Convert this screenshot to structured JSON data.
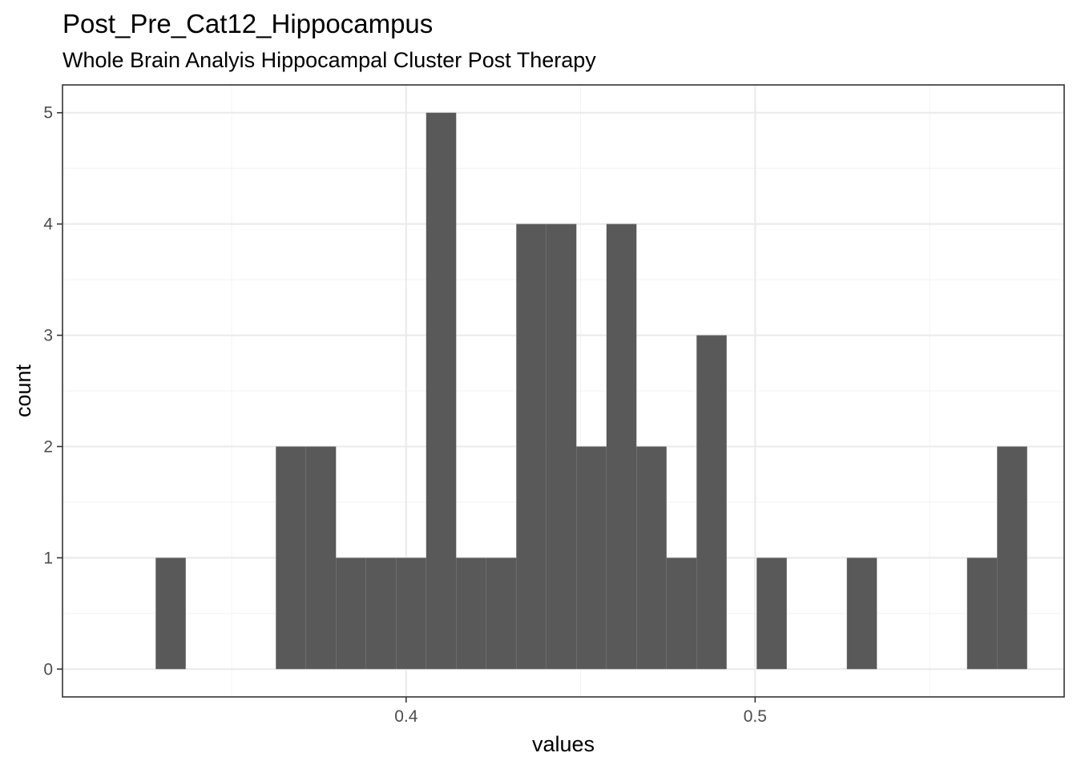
{
  "chart_data": {
    "type": "bar",
    "title": "Post_Pre_Cat12_Hippocampus",
    "subtitle": "Whole Brain Analyis Hippocampal Cluster Post Therapy",
    "xlabel": "values",
    "ylabel": "count",
    "x_ticks": [
      0.4,
      0.5
    ],
    "x_tick_labels": [
      "0.4",
      "0.5"
    ],
    "y_ticks": [
      0,
      1,
      2,
      3,
      4,
      5
    ],
    "y_tick_labels": [
      "0",
      "1",
      "2",
      "3",
      "4",
      "5"
    ],
    "xlim": [
      0.30155,
      0.58855
    ],
    "ylim": [
      -0.25,
      5.25
    ],
    "bin_width": 0.00861,
    "bins": [
      {
        "x_min": 0.32825,
        "x_max": 0.33686,
        "count": 1
      },
      {
        "x_min": 0.33686,
        "x_max": 0.34547,
        "count": 0
      },
      {
        "x_min": 0.34547,
        "x_max": 0.35408,
        "count": 0
      },
      {
        "x_min": 0.35408,
        "x_max": 0.36269,
        "count": 0
      },
      {
        "x_min": 0.36269,
        "x_max": 0.3713,
        "count": 2
      },
      {
        "x_min": 0.3713,
        "x_max": 0.37991,
        "count": 2
      },
      {
        "x_min": 0.37991,
        "x_max": 0.38852,
        "count": 1
      },
      {
        "x_min": 0.38852,
        "x_max": 0.39713,
        "count": 1
      },
      {
        "x_min": 0.39713,
        "x_max": 0.40574,
        "count": 1
      },
      {
        "x_min": 0.40574,
        "x_max": 0.41435,
        "count": 5
      },
      {
        "x_min": 0.41435,
        "x_max": 0.42296,
        "count": 1
      },
      {
        "x_min": 0.42296,
        "x_max": 0.43157,
        "count": 1
      },
      {
        "x_min": 0.43157,
        "x_max": 0.44018,
        "count": 4
      },
      {
        "x_min": 0.44018,
        "x_max": 0.44879,
        "count": 4
      },
      {
        "x_min": 0.44879,
        "x_max": 0.4574,
        "count": 2
      },
      {
        "x_min": 0.4574,
        "x_max": 0.46601,
        "count": 4
      },
      {
        "x_min": 0.46601,
        "x_max": 0.47462,
        "count": 2
      },
      {
        "x_min": 0.47462,
        "x_max": 0.48323,
        "count": 1
      },
      {
        "x_min": 0.48323,
        "x_max": 0.49184,
        "count": 3
      },
      {
        "x_min": 0.49184,
        "x_max": 0.50045,
        "count": 0
      },
      {
        "x_min": 0.50045,
        "x_max": 0.50906,
        "count": 1
      },
      {
        "x_min": 0.50906,
        "x_max": 0.51767,
        "count": 0
      },
      {
        "x_min": 0.51767,
        "x_max": 0.52628,
        "count": 0
      },
      {
        "x_min": 0.52628,
        "x_max": 0.53489,
        "count": 1
      },
      {
        "x_min": 0.53489,
        "x_max": 0.5435,
        "count": 0
      },
      {
        "x_min": 0.5435,
        "x_max": 0.55211,
        "count": 0
      },
      {
        "x_min": 0.55211,
        "x_max": 0.56072,
        "count": 0
      },
      {
        "x_min": 0.56072,
        "x_max": 0.56933,
        "count": 1
      },
      {
        "x_min": 0.56933,
        "x_max": 0.57794,
        "count": 2
      }
    ],
    "grid": true,
    "legend": "none",
    "bar_color": "#595959",
    "panel_border_color": "#333333",
    "grid_color_major": "#ebebeb",
    "grid_color_minor": "#f4f4f4"
  }
}
